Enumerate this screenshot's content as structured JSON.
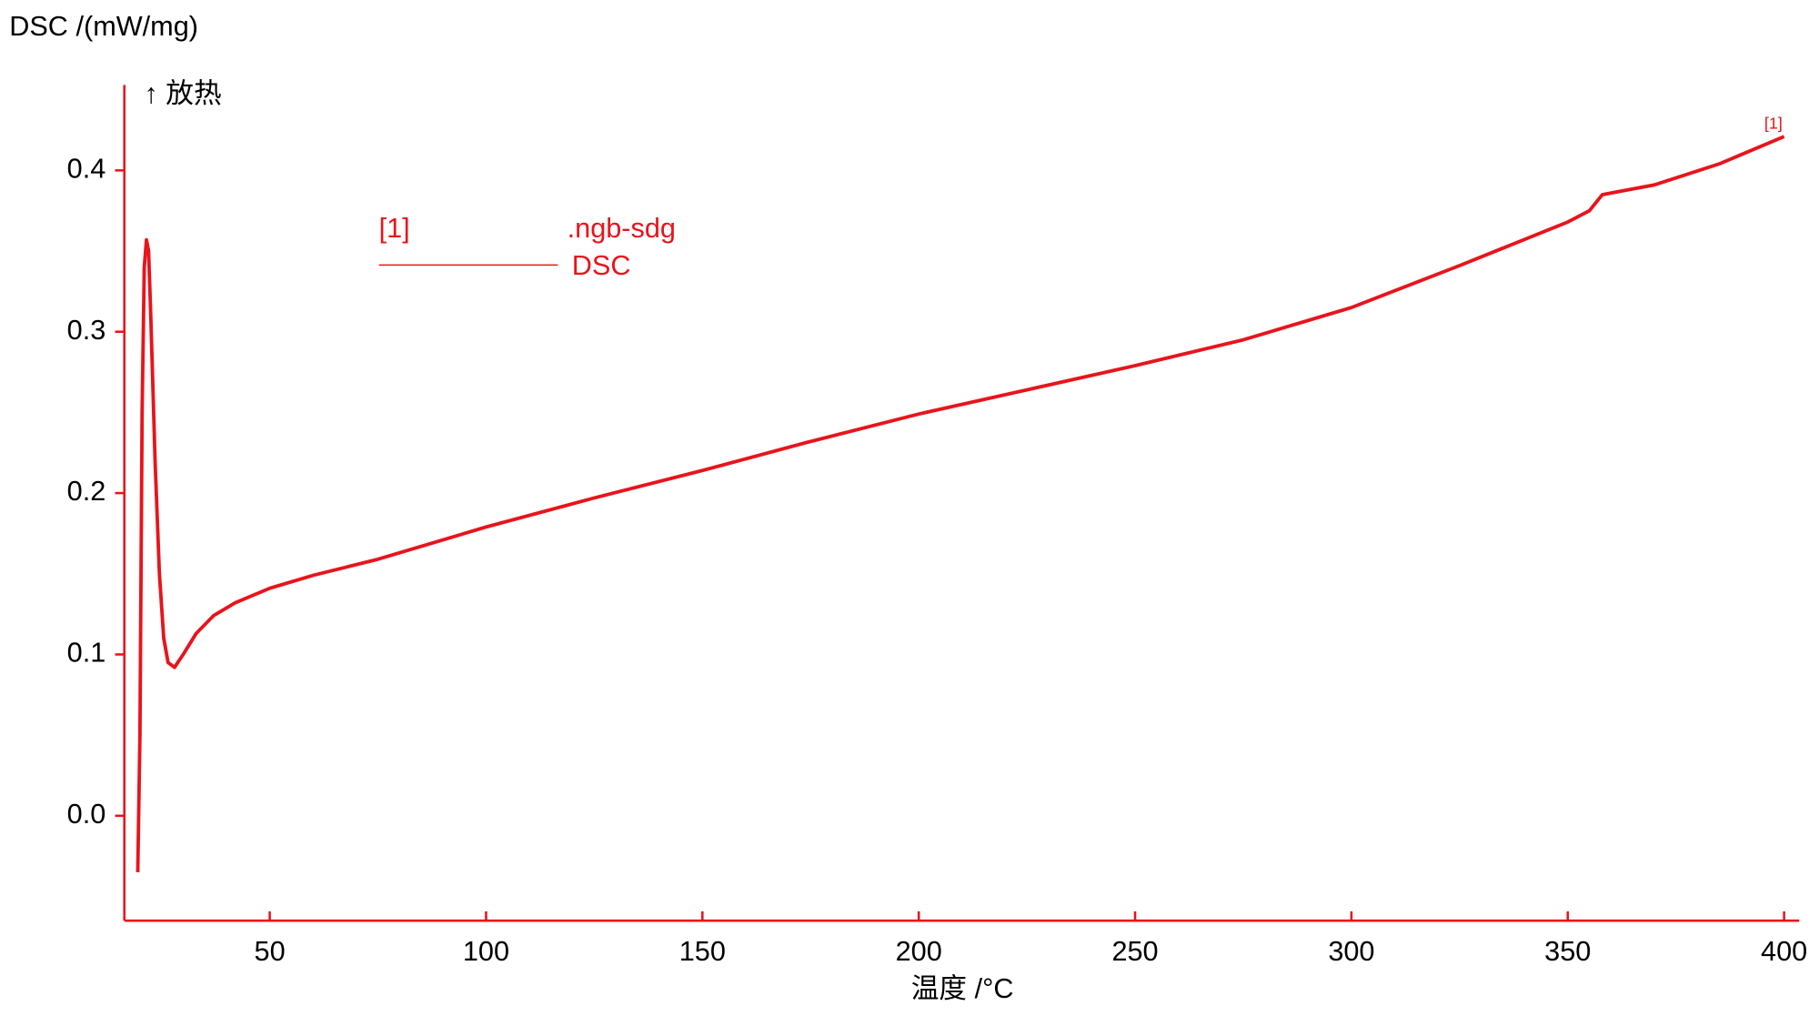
{
  "chart_data": {
    "type": "line",
    "ylabel": "DSC /(mW/mg)",
    "direction_label": "↑ 放热",
    "xlabel": "温度 /°C",
    "legend_id": "[1]",
    "legend_file": ".ngb-sdg",
    "end_label": "[1]",
    "color": "#e8141c",
    "xlim": [
      16.4,
      403.5
    ],
    "ylim": [
      -0.065,
      0.453
    ],
    "xticks": [
      50,
      100,
      150,
      200,
      250,
      300,
      350,
      400
    ],
    "yticks": [
      {
        "value": 0,
        "label": "0.0"
      },
      0.1,
      0.2,
      0.3,
      0.4
    ],
    "x": [
      19.5,
      20.0,
      20.5,
      21.0,
      21.5,
      22.0,
      22.5,
      23.5,
      24.5,
      25.5,
      26.5,
      28,
      30,
      33,
      37,
      42,
      50,
      60,
      75,
      100,
      125,
      150,
      175,
      200,
      225,
      250,
      275,
      300,
      325,
      350,
      355,
      358,
      370,
      385,
      400
    ],
    "series": [
      {
        "name": "DSC",
        "color": "#e8141c",
        "values": [
          -0.035,
          0.05,
          0.25,
          0.34,
          0.357,
          0.35,
          0.31,
          0.22,
          0.15,
          0.11,
          0.095,
          0.092,
          0.1,
          0.113,
          0.124,
          0.132,
          0.141,
          0.149,
          0.159,
          0.179,
          0.197,
          0.214,
          0.232,
          0.249,
          0.264,
          0.279,
          0.295,
          0.315,
          0.341,
          0.368,
          0.375,
          0.385,
          0.391,
          0.404,
          0.421
        ]
      }
    ]
  }
}
